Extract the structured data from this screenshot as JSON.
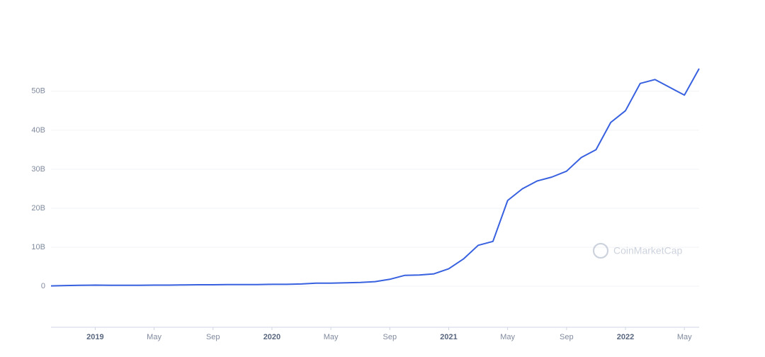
{
  "chart_data": {
    "type": "line",
    "watermark": "CoinMarketCap",
    "color": "#3861e0",
    "x": [
      "2018-10",
      "2018-11",
      "2018-12",
      "2019-01",
      "2019-02",
      "2019-03",
      "2019-04",
      "2019-05",
      "2019-06",
      "2019-07",
      "2019-08",
      "2019-09",
      "2019-10",
      "2019-11",
      "2019-12",
      "2020-01",
      "2020-02",
      "2020-03",
      "2020-04",
      "2020-05",
      "2020-06",
      "2020-07",
      "2020-08",
      "2020-09",
      "2020-10",
      "2020-11",
      "2020-12",
      "2021-01",
      "2021-02",
      "2021-03",
      "2021-04",
      "2021-05",
      "2021-06",
      "2021-07",
      "2021-08",
      "2021-09",
      "2021-10",
      "2021-11",
      "2021-12",
      "2022-01",
      "2022-02",
      "2022-03",
      "2022-04",
      "2022-05",
      "2022-06"
    ],
    "values": [
      0.1,
      0.2,
      0.25,
      0.3,
      0.25,
      0.25,
      0.25,
      0.3,
      0.3,
      0.35,
      0.4,
      0.4,
      0.45,
      0.45,
      0.45,
      0.5,
      0.5,
      0.6,
      0.8,
      0.8,
      0.9,
      1.0,
      1.2,
      1.8,
      2.8,
      2.9,
      3.2,
      4.5,
      7,
      10.5,
      11.5,
      22,
      25,
      27,
      28,
      29.5,
      33,
      35,
      42,
      45,
      52,
      53,
      51,
      49,
      55.8
    ],
    "xlim": [
      "2018-10",
      "2022-06"
    ],
    "xticks": [
      {
        "value": "2019-01",
        "label": "2019"
      },
      {
        "value": "2019-05",
        "label": "May"
      },
      {
        "value": "2019-09",
        "label": "Sep"
      },
      {
        "value": "2020-01",
        "label": "2020"
      },
      {
        "value": "2020-05",
        "label": "May"
      },
      {
        "value": "2020-09",
        "label": "Sep"
      },
      {
        "value": "2021-01",
        "label": "2021"
      },
      {
        "value": "2021-05",
        "label": "May"
      },
      {
        "value": "2021-09",
        "label": "Sep"
      },
      {
        "value": "2022-01",
        "label": "2022"
      },
      {
        "value": "2022-05",
        "label": "May"
      }
    ],
    "ylim": [
      -10.5,
      58.5
    ],
    "yticks": [
      0,
      {
        "value": 10,
        "label": "10B"
      },
      {
        "value": 20,
        "label": "20B"
      },
      {
        "value": 30,
        "label": "30B"
      },
      {
        "value": 40,
        "label": "40B"
      },
      {
        "value": 50,
        "label": "50B"
      }
    ],
    "grid": true
  }
}
